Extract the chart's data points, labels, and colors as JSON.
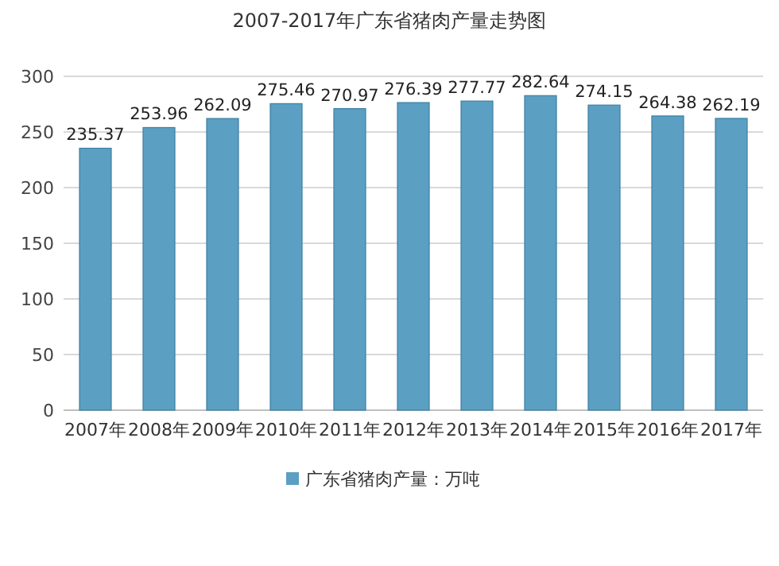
{
  "chart_data": {
    "type": "bar",
    "title": "2007-2017年广东省猪肉产量走势图",
    "categories": [
      "2007年",
      "2008年",
      "2009年",
      "2010年",
      "2011年",
      "2012年",
      "2013年",
      "2014年",
      "2015年",
      "2016年",
      "2017年"
    ],
    "series": [
      {
        "name": "广东省猪肉产量：万吨",
        "color": "#5b9fc2",
        "values": [
          235.37,
          253.96,
          262.09,
          275.46,
          270.97,
          276.39,
          277.77,
          282.64,
          274.15,
          264.38,
          262.19
        ]
      }
    ],
    "ylim": [
      0,
      300
    ],
    "yticks": [
      0,
      50,
      100,
      150,
      200,
      250,
      300
    ],
    "grid": "y",
    "legend": "bottom",
    "data_labels": true
  }
}
